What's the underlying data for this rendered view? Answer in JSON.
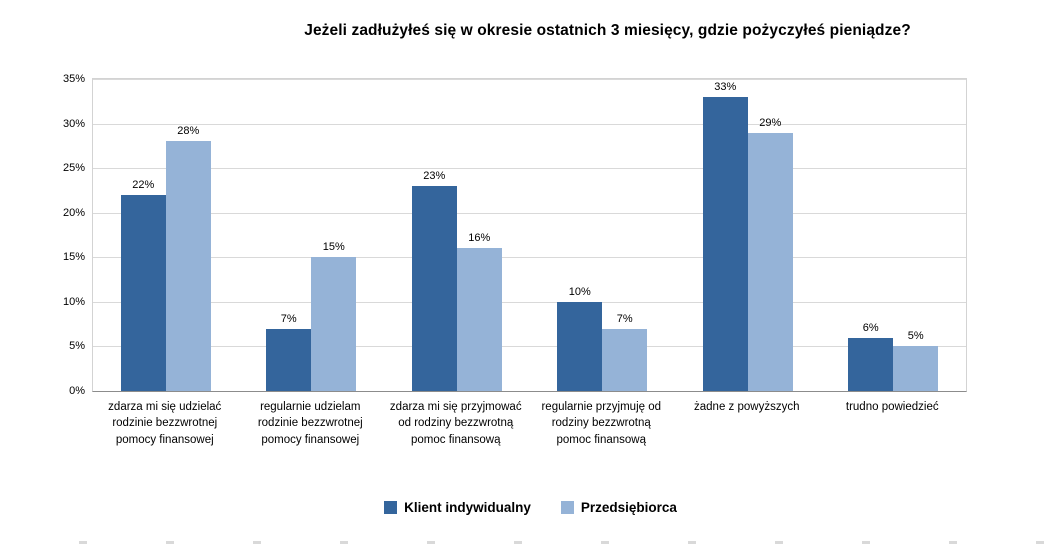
{
  "title": "Jeżeli zadłużyłeś się w okresie ostatnich 3 miesięcy, gdzie pożyczyłeś pieniądze?",
  "chart_data": {
    "type": "bar",
    "title": "Jeżeli zadłużyłeś się w okresie ostatnich 3 miesięcy, gdzie pożyczyłeś pieniądze?",
    "categories": [
      "zdarza mi się udzielać rodzinie bezzwrotnej pomocy finansowej",
      "regularnie udzielam rodzinie bezzwrotnej pomocy finansowej",
      "zdarza mi się przyjmować od rodziny bezzwrotną pomoc finansową",
      "regularnie przyjmuję od rodziny bezzwrotną pomoc finansową",
      "żadne z powyższych",
      "trudno powiedzieć"
    ],
    "series": [
      {
        "name": "Klient indywidualny",
        "color": "#34659C",
        "values": [
          22,
          7,
          23,
          10,
          33,
          6
        ],
        "data_labels": [
          "22%",
          "7%",
          "23%",
          "10%",
          "33%",
          "6%"
        ]
      },
      {
        "name": "Przedsiębiorca",
        "color": "#95B3D7",
        "values": [
          28,
          15,
          16,
          7,
          29,
          5
        ],
        "data_labels": [
          "28%",
          "15%",
          "16%",
          "7%",
          "29%",
          "5%"
        ]
      }
    ],
    "xlabel": "",
    "ylabel": "",
    "ylim": [
      0,
      35
    ],
    "ytick_step": 5,
    "ytick_labels": [
      "0%",
      "5%",
      "10%",
      "15%",
      "20%",
      "25%",
      "30%",
      "35%"
    ],
    "grid": true,
    "legend_position": "bottom"
  }
}
